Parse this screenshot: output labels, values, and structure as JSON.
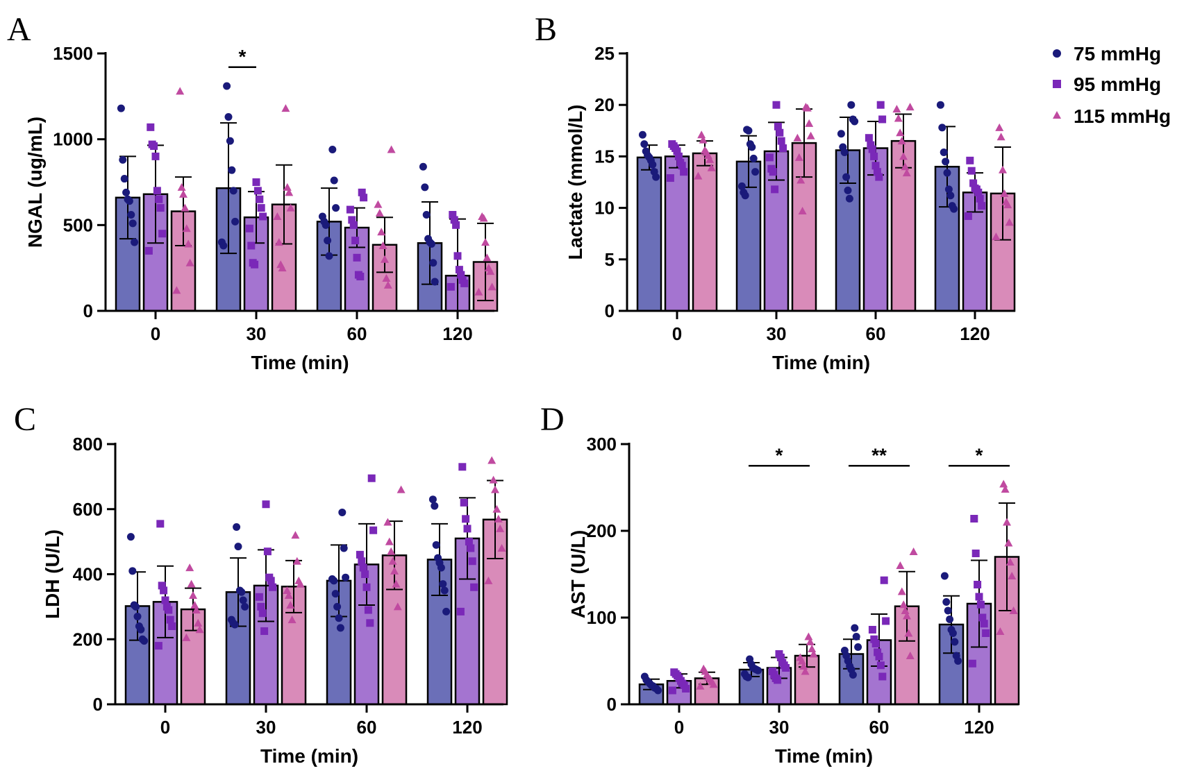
{
  "legend": {
    "position": "top-right",
    "entries": [
      {
        "label": "75 mmHg",
        "marker": "circle"
      },
      {
        "label": "95 mmHg",
        "marker": "square"
      },
      {
        "label": "115 mmHg",
        "marker": "triangle"
      }
    ]
  },
  "colors": {
    "bars": [
      "#6b6fb8",
      "#a474d0",
      "#d98bb9"
    ],
    "markers": [
      "#1a1a7a",
      "#7a28b8",
      "#c04aa0"
    ],
    "axis": "#000000"
  },
  "chart_data": [
    {
      "panel": "A",
      "type": "bar",
      "ylabel": "NGAL (ug/mL)",
      "xlabel": "Time (min)",
      "categories": [
        "0",
        "30",
        "60",
        "120"
      ],
      "ylim": [
        0,
        1500
      ],
      "yticks": [
        0,
        500,
        1000,
        1500
      ],
      "grid": false,
      "series": [
        {
          "name": "75 mmHg",
          "values": [
            660,
            715,
            520,
            395
          ],
          "sd": [
            240,
            380,
            195,
            240
          ],
          "points": [
            [
              1180,
              880,
              770,
              690,
              650,
              640,
              560,
              510,
              400
            ],
            [
              1310,
              1130,
              990,
              820,
              700,
              520,
              400,
              380
            ],
            [
              940,
              760,
              600,
              550,
              520,
              500,
              410,
              320
            ],
            [
              840,
              720,
              560,
              420,
              400,
              390,
              280,
              170
            ]
          ]
        },
        {
          "name": "95 mmHg",
          "values": [
            680,
            545,
            485,
            205
          ],
          "sd": [
            285,
            150,
            115,
            330
          ],
          "points": [
            [
              1070,
              970,
              960,
              900,
              700,
              650,
              600,
              450,
              350
            ],
            [
              750,
              700,
              650,
              600,
              550,
              480,
              380,
              280,
              270
            ],
            [
              690,
              660,
              590,
              530,
              500,
              410,
              310,
              210,
              200
            ],
            [
              560,
              530,
              500,
              320,
              240,
              210,
              180,
              160,
              140
            ]
          ]
        },
        {
          "name": "115 mmHg",
          "values": [
            580,
            620,
            385,
            285
          ],
          "sd": [
            200,
            230,
            160,
            225
          ],
          "points": [
            [
              1280,
              720,
              680,
              600,
              480,
              390,
              280,
              120
            ],
            [
              1180,
              720,
              690,
              600,
              550,
              400,
              270,
              250
            ],
            [
              940,
              620,
              570,
              460,
              380,
              300,
              190,
              150
            ],
            [
              550,
              540,
              400,
              310,
              250,
              230,
              140,
              110
            ]
          ]
        }
      ],
      "significance": [
        {
          "category": "30",
          "label": "*",
          "value": 1420
        }
      ]
    },
    {
      "panel": "B",
      "type": "bar",
      "ylabel": "Lactate (mmol/L)",
      "xlabel": "Time (min)",
      "categories": [
        "0",
        "30",
        "60",
        "120"
      ],
      "ylim": [
        0,
        25
      ],
      "yticks": [
        0,
        5,
        10,
        15,
        20,
        25
      ],
      "grid": false,
      "series": [
        {
          "name": "75 mmHg",
          "values": [
            14.9,
            14.5,
            15.6,
            14.0
          ],
          "sd": [
            1.2,
            2.5,
            3.2,
            3.9
          ],
          "points": [
            [
              17.1,
              16.2,
              15.5,
              15.1,
              14.9,
              14.6,
              14.2,
              13.5,
              13.0
            ],
            [
              17.6,
              17.5,
              16.2,
              15.9,
              14.8,
              13.5,
              12.1,
              11.5,
              11.2
            ],
            [
              20.0,
              18.6,
              18.4,
              17.2,
              15.9,
              15.4,
              13.0,
              11.7,
              10.9
            ],
            [
              20.0,
              17.8,
              15.4,
              14.5,
              13.4,
              11.8,
              11.2,
              10.2,
              9.9
            ]
          ]
        },
        {
          "name": "95 mmHg",
          "values": [
            15.0,
            15.5,
            15.8,
            11.5
          ],
          "sd": [
            1.1,
            2.8,
            2.6,
            1.9
          ],
          "points": [
            [
              16.2,
              16.0,
              15.8,
              15.5,
              15.0,
              14.4,
              14.1,
              13.5,
              12.9
            ],
            [
              20.0,
              17.9,
              17.3,
              16.5,
              15.8,
              14.9,
              13.8,
              13.5,
              11.8
            ],
            [
              20.0,
              18.6,
              16.8,
              16.1,
              15.7,
              15.0,
              14.1,
              13.5,
              13.0
            ],
            [
              14.6,
              13.6,
              12.4,
              11.9,
              11.8,
              11.5,
              10.9,
              10.2,
              9.2
            ]
          ]
        },
        {
          "name": "115 mmHg",
          "values": [
            15.3,
            16.3,
            16.5,
            11.4
          ],
          "sd": [
            1.2,
            3.3,
            2.6,
            4.5
          ],
          "points": [
            [
              17.1,
              16.6,
              15.6,
              15.4,
              15.1,
              14.7,
              13.9,
              13.1
            ],
            [
              19.8,
              19.7,
              18.2,
              17.0,
              16.8,
              14.9,
              12.7,
              9.7
            ],
            [
              19.8,
              19.6,
              18.7,
              17.3,
              16.5,
              15.0,
              14.0,
              13.4
            ],
            [
              17.8,
              16.9,
              13.7,
              11.4,
              10.6,
              10.3,
              8.6,
              7.2
            ]
          ]
        }
      ]
    },
    {
      "panel": "C",
      "type": "bar",
      "ylabel": "LDH (U/L)",
      "xlabel": "Time (min)",
      "categories": [
        "0",
        "30",
        "60",
        "120"
      ],
      "ylim": [
        0,
        800
      ],
      "yticks": [
        0,
        200,
        400,
        600,
        800
      ],
      "grid": false,
      "series": [
        {
          "name": "75 mmHg",
          "values": [
            302,
            345,
            380,
            445
          ],
          "sd": [
            105,
            105,
            110,
            110
          ],
          "points": [
            [
              515,
              410,
              305,
              300,
              270,
              240,
              230,
              200,
              195
            ],
            [
              545,
              485,
              350,
              345,
              320,
              300,
              260,
              250,
              245
            ],
            [
              590,
              480,
              390,
              385,
              380,
              340,
              300,
              265,
              235
            ],
            [
              630,
              610,
              490,
              450,
              435,
              420,
              370,
              350,
              285
            ]
          ]
        },
        {
          "name": "95 mmHg",
          "values": [
            315,
            365,
            430,
            510
          ],
          "sd": [
            110,
            110,
            125,
            125
          ],
          "points": [
            [
              555,
              365,
              350,
              320,
              300,
              290,
              260,
              240,
              180
            ],
            [
              615,
              470,
              390,
              380,
              360,
              330,
              300,
              280,
              225
            ],
            [
              695,
              535,
              460,
              440,
              420,
              400,
              360,
              290,
              250
            ],
            [
              730,
              620,
              570,
              540,
              500,
              480,
              440,
              360,
              285
            ]
          ]
        },
        {
          "name": "115 mmHg",
          "values": [
            292,
            362,
            458,
            568
          ],
          "sd": [
            65,
            80,
            105,
            120
          ],
          "points": [
            [
              420,
              370,
              335,
              305,
              290,
              250,
              230,
              205
            ],
            [
              520,
              440,
              380,
              370,
              350,
              335,
              305,
              260
            ],
            [
              660,
              560,
              500,
              470,
              440,
              410,
              370,
              300
            ],
            [
              750,
              690,
              660,
              600,
              570,
              540,
              480,
              380
            ]
          ]
        }
      ]
    },
    {
      "panel": "D",
      "type": "bar",
      "ylabel": "AST (U/L)",
      "xlabel": "Time (min)",
      "categories": [
        "0",
        "30",
        "60",
        "120"
      ],
      "ylim": [
        0,
        300
      ],
      "yticks": [
        0,
        100,
        200,
        300
      ],
      "grid": false,
      "series": [
        {
          "name": "75 mmHg",
          "values": [
            23,
            40,
            58,
            92
          ],
          "sd": [
            6,
            8,
            17,
            33
          ],
          "points": [
            [
              32,
              28,
              26,
              24,
              22,
              21,
              19,
              18,
              16
            ],
            [
              52,
              46,
              42,
              41,
              40,
              39,
              35,
              32,
              31
            ],
            [
              88,
              78,
              66,
              62,
              56,
              50,
              44,
              40,
              34
            ],
            [
              148,
              118,
              108,
              98,
              86,
              82,
              72,
              56,
              50
            ]
          ]
        },
        {
          "name": "95 mmHg",
          "values": [
            27,
            42,
            74,
            116
          ],
          "sd": [
            8,
            12,
            30,
            50
          ],
          "points": [
            [
              37,
              35,
              33,
              30,
              27,
              24,
              22,
              18,
              16
            ],
            [
              58,
              54,
              48,
              45,
              42,
              38,
              34,
              30,
              28
            ],
            [
              143,
              96,
              86,
              75,
              70,
              60,
              55,
              45,
              32
            ],
            [
              214,
              174,
              138,
              124,
              115,
              100,
              93,
              82,
              47
            ]
          ]
        },
        {
          "name": "115 mmHg",
          "values": [
            30,
            56,
            113,
            170
          ],
          "sd": [
            7,
            13,
            40,
            62
          ],
          "points": [
            [
              41,
              38,
              34,
              31,
              29,
              26,
              23,
              21
            ],
            [
              78,
              72,
              64,
              58,
              54,
              50,
              44,
              38
            ],
            [
              176,
              160,
              130,
              115,
              108,
              102,
              82,
              56
            ],
            [
              254,
              248,
              210,
              186,
              164,
              148,
              108,
              84
            ]
          ]
        }
      ],
      "significance": [
        {
          "category": "30",
          "label": "*",
          "value": 275
        },
        {
          "category": "60",
          "label": "**",
          "value": 275
        },
        {
          "category": "120",
          "label": "*",
          "value": 275
        }
      ]
    }
  ]
}
